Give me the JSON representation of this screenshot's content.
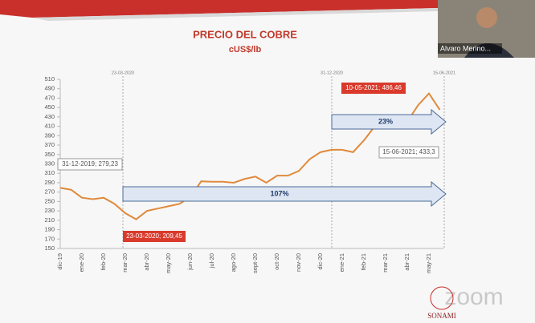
{
  "chart_data": {
    "type": "line",
    "title": "PRECIO DEL COBRE",
    "subtitle": "cUS$/lb",
    "categories": [
      "dic-19",
      null,
      "ene-20",
      null,
      "feb-20",
      null,
      "mar-20",
      null,
      "abr-20",
      null,
      "may-20",
      null,
      "jun-20",
      null,
      "jul-20",
      null,
      "ago-20",
      null,
      "sept-20",
      null,
      "oct-20",
      null,
      "nov-20",
      null,
      "dic-20",
      null,
      "ene-21",
      null,
      "feb-21",
      null,
      "mar-21",
      null,
      "abr-21",
      null,
      "may-21",
      null
    ],
    "values": [
      279,
      275,
      258,
      255,
      258,
      245,
      225,
      212,
      230,
      235,
      240,
      245,
      260,
      293,
      292,
      292,
      290,
      298,
      303,
      290,
      305,
      305,
      315,
      340,
      355,
      360,
      360,
      355,
      380,
      410,
      405,
      405,
      420,
      455,
      480,
      445
    ],
    "color": "#e08a3c",
    "ylim": [
      150,
      510
    ],
    "yticks": [
      150,
      170,
      190,
      210,
      230,
      250,
      270,
      290,
      310,
      330,
      350,
      370,
      390,
      410,
      430,
      450,
      470,
      490,
      510
    ],
    "markers": [
      "23-03-2020",
      "31-12-2020",
      "15-06-2021"
    ],
    "annotations": [
      "31-12-2019; 279,23",
      "23-03-2020; 209,45",
      "10-05-2021; 486,46",
      "15-06-2021; 433,3"
    ],
    "arrows": [
      "107%",
      "23%"
    ]
  },
  "participant": {
    "name": "Alvaro Merino..."
  },
  "logo": {
    "text": "zoom",
    "brand": "SONAMI"
  }
}
